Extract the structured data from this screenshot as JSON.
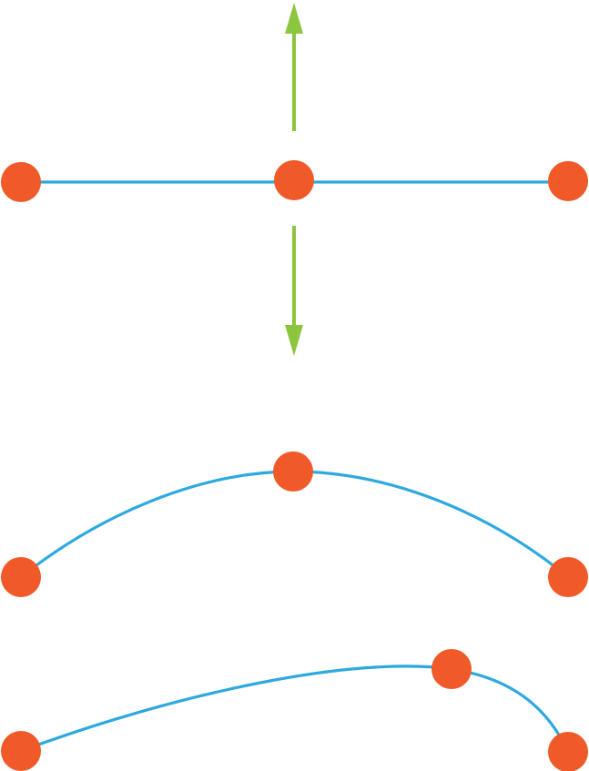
{
  "colors": {
    "background": "#ffffff",
    "curve": "#2ea9df",
    "control_point": "#f05a28",
    "arrow": "#8cc63f"
  },
  "icons": {
    "arrow_up": "arrow-up-icon",
    "arrow_down": "arrow-down-icon"
  },
  "panels": [
    {
      "name": "straight-line-with-drag-arrows",
      "points": 3,
      "arrows": 2
    },
    {
      "name": "symmetric-arc",
      "points": 3,
      "arrows": 0
    },
    {
      "name": "skewed-arc",
      "points": 3,
      "arrows": 0
    }
  ]
}
